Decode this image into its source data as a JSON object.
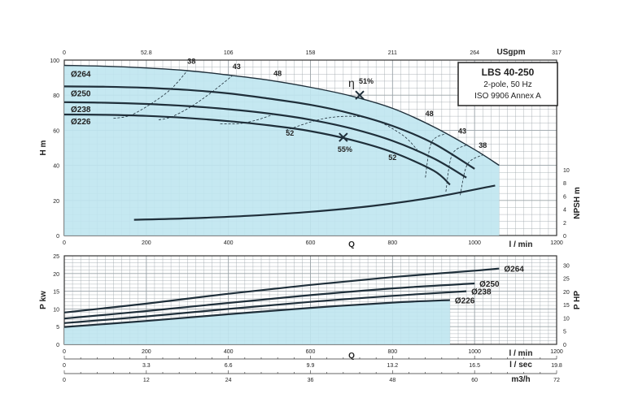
{
  "chart_data": [
    {
      "type": "line",
      "name_box": {
        "title": "LBS 40-250",
        "lines": [
          "2-pole, 50 Hz",
          "ISO 9906 Annex A"
        ]
      },
      "x_unit": "l / min",
      "x_label": "Q",
      "xlim": [
        0,
        1200
      ],
      "x_ticks": [
        "0",
        "200",
        "400",
        "600",
        "800",
        "1000",
        "1200"
      ],
      "top_axis": {
        "unit": "USgpm",
        "ticks": [
          "0",
          "52.8",
          "106",
          "158",
          "211",
          "264",
          "317"
        ]
      },
      "ylabel": "H m",
      "ylim": [
        0,
        100
      ],
      "y_ticks": [
        "0",
        "20",
        "40",
        "60",
        "80",
        "100"
      ],
      "y2label": "NPSH m",
      "y2_ticks": [
        "0",
        "2",
        "4",
        "6",
        "8",
        "10"
      ],
      "y2lim": [
        0,
        10
      ],
      "series": [
        {
          "name": "Ø264",
          "x": [
            0,
            100,
            200,
            300,
            400,
            500,
            600,
            700,
            800,
            900,
            1000,
            1060
          ],
          "y": [
            97,
            96.5,
            95.5,
            94,
            91.5,
            88.5,
            84.5,
            79.5,
            72.5,
            62,
            49,
            40
          ]
        },
        {
          "name": "Ø250",
          "x": [
            0,
            100,
            200,
            300,
            400,
            500,
            600,
            700,
            800,
            900,
            1000
          ],
          "y": [
            85,
            84.8,
            84.2,
            83,
            81,
            78,
            74.5,
            69.5,
            62.5,
            52.5,
            38
          ]
        },
        {
          "name": "Ø238",
          "x": [
            0,
            100,
            200,
            300,
            400,
            500,
            600,
            700,
            800,
            900,
            980
          ],
          "y": [
            76,
            75.7,
            75,
            73.8,
            72,
            69.5,
            66,
            61,
            54,
            44,
            33
          ]
        },
        {
          "name": "Ø226",
          "x": [
            0,
            100,
            200,
            300,
            400,
            500,
            600,
            700,
            800,
            900,
            940
          ],
          "y": [
            69,
            68.8,
            68.2,
            67,
            65.2,
            62.8,
            59.5,
            54.5,
            47.5,
            37,
            29
          ]
        },
        {
          "name": "NPSH",
          "axis": "y2",
          "x": [
            170,
            300,
            450,
            600,
            750,
            900,
            1050
          ],
          "y": [
            2.4,
            2.6,
            3.0,
            3.6,
            4.5,
            5.8,
            7.6
          ]
        }
      ],
      "efficiency_labels": [
        "38",
        "43",
        "48",
        "52",
        "52",
        "48",
        "43",
        "38"
      ],
      "best_points": [
        {
          "label": "51%",
          "symbol": "η",
          "x": 720,
          "y": 80
        },
        {
          "label": "55%",
          "x": 680,
          "y": 56
        }
      ],
      "shaded_region": true,
      "grid": true
    },
    {
      "type": "line",
      "x_label": "Q",
      "xlim": [
        0,
        1200
      ],
      "x_units": [
        {
          "unit": "l / min",
          "ticks": [
            "0",
            "200",
            "400",
            "600",
            "800",
            "1000",
            "1200"
          ]
        },
        {
          "unit": "l / sec",
          "ticks": [
            "0",
            "3.3",
            "6.6",
            "9.9",
            "13.2",
            "16.5",
            "19.8"
          ]
        },
        {
          "unit": "m3/h",
          "ticks": [
            "0",
            "12",
            "24",
            "36",
            "48",
            "60",
            "72"
          ]
        }
      ],
      "ylabel": "P kw",
      "ylim": [
        0,
        25
      ],
      "y_ticks": [
        "0",
        "5",
        "10",
        "15",
        "20",
        "25"
      ],
      "y2label": "P HP",
      "y2_ticks": [
        "0",
        "5",
        "10",
        "15",
        "20",
        "25",
        "30"
      ],
      "y2lim": [
        0,
        33.5
      ],
      "series": [
        {
          "name": "Ø264",
          "x": [
            0,
            200,
            400,
            600,
            800,
            1000,
            1060
          ],
          "y": [
            9.0,
            11.5,
            14.3,
            16.8,
            19.0,
            20.8,
            21.4
          ]
        },
        {
          "name": "Ø250",
          "x": [
            0,
            200,
            400,
            600,
            800,
            1000
          ],
          "y": [
            7.3,
            9.4,
            11.7,
            13.9,
            15.8,
            17.2
          ]
        },
        {
          "name": "Ø238",
          "x": [
            0,
            200,
            400,
            600,
            800,
            980
          ],
          "y": [
            6.0,
            7.9,
            10.0,
            12.0,
            13.7,
            15.0
          ]
        },
        {
          "name": "Ø226",
          "x": [
            0,
            200,
            400,
            600,
            800,
            940
          ],
          "y": [
            4.9,
            6.6,
            8.5,
            10.3,
            11.8,
            12.5
          ]
        }
      ],
      "shaded_region": true,
      "grid": true
    }
  ],
  "colors": {
    "fill": "#bfe6f0",
    "curve": "#1f2f3a",
    "grid": "#9aa3a8",
    "frame": "#333333"
  }
}
